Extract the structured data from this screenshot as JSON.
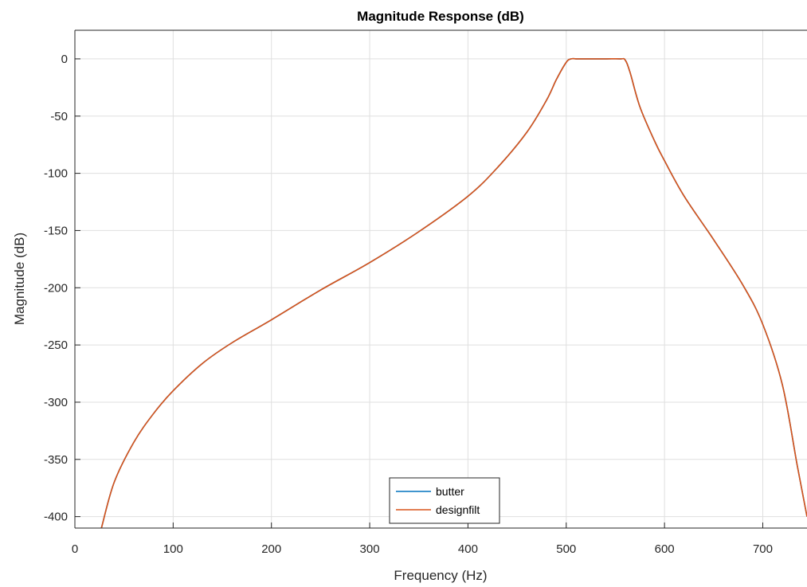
{
  "chart_data": {
    "type": "line",
    "title": "Magnitude Response (dB)",
    "xlabel": "Frequency (Hz)",
    "ylabel": "Magnitude (dB)",
    "xlim": [
      0,
      745
    ],
    "ylim": [
      -410,
      25
    ],
    "xticks": [
      0,
      100,
      200,
      300,
      400,
      500,
      600,
      700
    ],
    "yticks": [
      0,
      -50,
      -100,
      -150,
      -200,
      -250,
      -300,
      -350,
      -400
    ],
    "xtick_labels": [
      "0",
      "100",
      "200",
      "300",
      "400",
      "500",
      "600",
      "700"
    ],
    "ytick_labels": [
      "0",
      "-50",
      "-100",
      "-150",
      "-200",
      "-250",
      "-300",
      "-350",
      "-400"
    ],
    "grid": true,
    "legend_position": "bottom-center",
    "series": [
      {
        "name": "butter",
        "color": "#0072BD",
        "x": [
          27,
          40,
          60,
          80,
          100,
          130,
          160,
          200,
          250,
          300,
          350,
          400,
          430,
          460,
          480,
          490,
          500,
          505,
          510,
          520,
          540,
          555,
          560,
          565,
          575,
          590,
          600,
          620,
          650,
          680,
          700,
          720,
          735,
          745
        ],
        "y": [
          -410,
          -370,
          -335,
          -310,
          -290,
          -266,
          -248,
          -228,
          -202,
          -178,
          -151,
          -120,
          -95,
          -64,
          -36,
          -18,
          -3,
          0,
          0,
          0,
          0,
          0,
          -1,
          -12,
          -42,
          -72,
          -89,
          -120,
          -158,
          -198,
          -232,
          -285,
          -355,
          -400
        ]
      },
      {
        "name": "designfilt",
        "color": "#D95319",
        "x": [
          27,
          40,
          60,
          80,
          100,
          130,
          160,
          200,
          250,
          300,
          350,
          400,
          430,
          460,
          480,
          490,
          500,
          505,
          510,
          520,
          540,
          555,
          560,
          565,
          575,
          590,
          600,
          620,
          650,
          680,
          700,
          720,
          735,
          745
        ],
        "y": [
          -410,
          -370,
          -335,
          -310,
          -290,
          -266,
          -248,
          -228,
          -202,
          -178,
          -151,
          -120,
          -95,
          -64,
          -36,
          -18,
          -3,
          0,
          0,
          0,
          0,
          0,
          -1,
          -12,
          -42,
          -72,
          -89,
          -120,
          -158,
          -198,
          -232,
          -285,
          -355,
          -400
        ]
      }
    ]
  }
}
